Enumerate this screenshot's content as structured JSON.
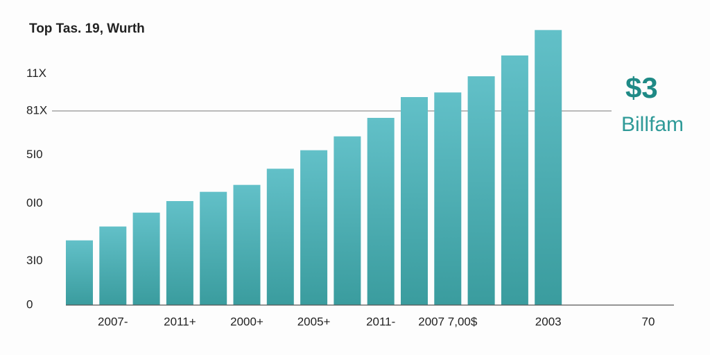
{
  "chart_data": {
    "type": "bar",
    "title": "Top Tas. 19, Wurth",
    "categories": [
      null,
      "2007-",
      null,
      "2011+",
      null,
      "2000+",
      null,
      "2005+",
      null,
      "2011-",
      null,
      "2007 7,00$",
      null,
      null,
      "2003"
    ],
    "values": [
      28,
      34,
      40,
      45,
      49,
      52,
      59,
      67,
      73,
      81,
      90,
      92,
      99,
      108,
      119
    ],
    "color": "#4aaeb2",
    "ylim": [
      0,
      120
    ],
    "yticks": [
      0,
      {
        "value": 19,
        "label": "3I0"
      },
      {
        "value": 44,
        "label": "0I0"
      },
      {
        "value": 65,
        "label": "5I0"
      },
      {
        "value": 84,
        "label": "81X"
      },
      {
        "value": 100,
        "label": "11X"
      }
    ],
    "reference_line": 84,
    "x_end_label": "70",
    "callout_value": "$3",
    "callout_unit": "Billfam"
  }
}
